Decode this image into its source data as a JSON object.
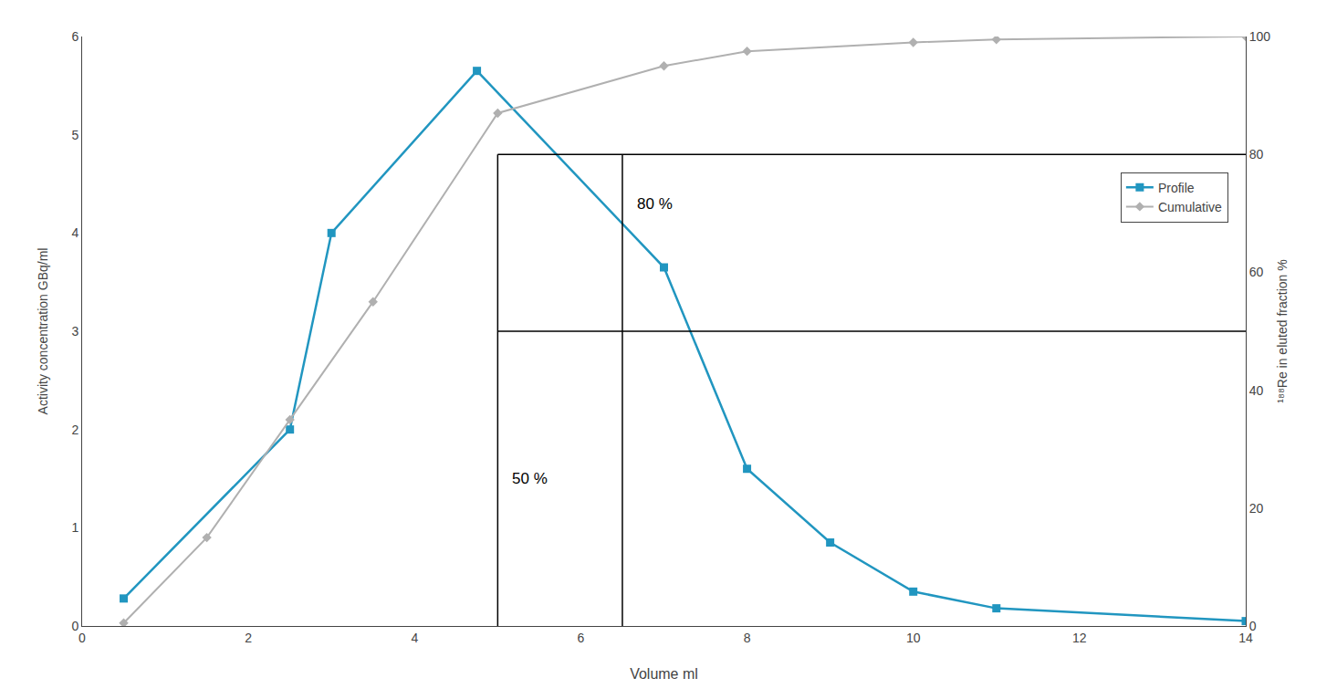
{
  "chart_data": {
    "type": "line",
    "xlabel": "Volume ml",
    "ylabel": "Activity concentration GBq/ml",
    "y2label": "¹⁸⁸Re in eluted fraction %",
    "xlim": [
      0,
      14
    ],
    "xticks": [
      0,
      2,
      4,
      6,
      8,
      10,
      12,
      14
    ],
    "ylim": [
      0,
      6
    ],
    "yticks": [
      0,
      1,
      2,
      3,
      4,
      5,
      6
    ],
    "y2lim": [
      0,
      100
    ],
    "y2ticks": [
      0,
      20,
      40,
      60,
      80,
      100
    ],
    "grid": false,
    "legend": "upper right",
    "series": [
      {
        "name": "Profile",
        "color": "#2196c0",
        "marker": "square",
        "x": [
          0.5,
          2.5,
          3.0,
          4.75,
          7.0,
          8.0,
          9.0,
          10.0,
          11.0,
          14.0
        ],
        "values": [
          0.28,
          2.0,
          4.0,
          5.65,
          3.65,
          1.6,
          0.85,
          0.35,
          0.18,
          0.05
        ]
      },
      {
        "name": "Cumulative",
        "color": "#b0b0b0",
        "marker": "diamond",
        "axis": "y2",
        "x": [
          0.5,
          1.5,
          2.5,
          3.5,
          5.0,
          7.0,
          8.0,
          10.0,
          11.0,
          14.0
        ],
        "values": [
          0.5,
          15.0,
          35.0,
          55.0,
          87.0,
          95.0,
          97.5,
          99.0,
          99.5,
          100.0
        ]
      }
    ],
    "annotations": [
      {
        "text": "50 %",
        "x": 5.15,
        "y": 1.5
      },
      {
        "text": "80 %",
        "x": 6.65,
        "y": 4.3
      }
    ],
    "lines": {
      "color": "#000000",
      "segments": [
        {
          "x": [
            5.0,
            5.0
          ],
          "y": [
            0,
            3.0
          ]
        },
        {
          "x": [
            5.0,
            6.5
          ],
          "y": [
            3.0,
            3.0
          ]
        },
        {
          "x": [
            6.5,
            6.5
          ],
          "y": [
            0,
            4.8
          ]
        },
        {
          "x": [
            5.0,
            14
          ],
          "y": [
            4.8,
            4.8
          ]
        },
        {
          "x": [
            5.0,
            5.0
          ],
          "y": [
            3.0,
            4.8
          ]
        },
        {
          "x": [
            6.5,
            14
          ],
          "y": [
            3.0,
            3.0
          ]
        }
      ]
    }
  }
}
